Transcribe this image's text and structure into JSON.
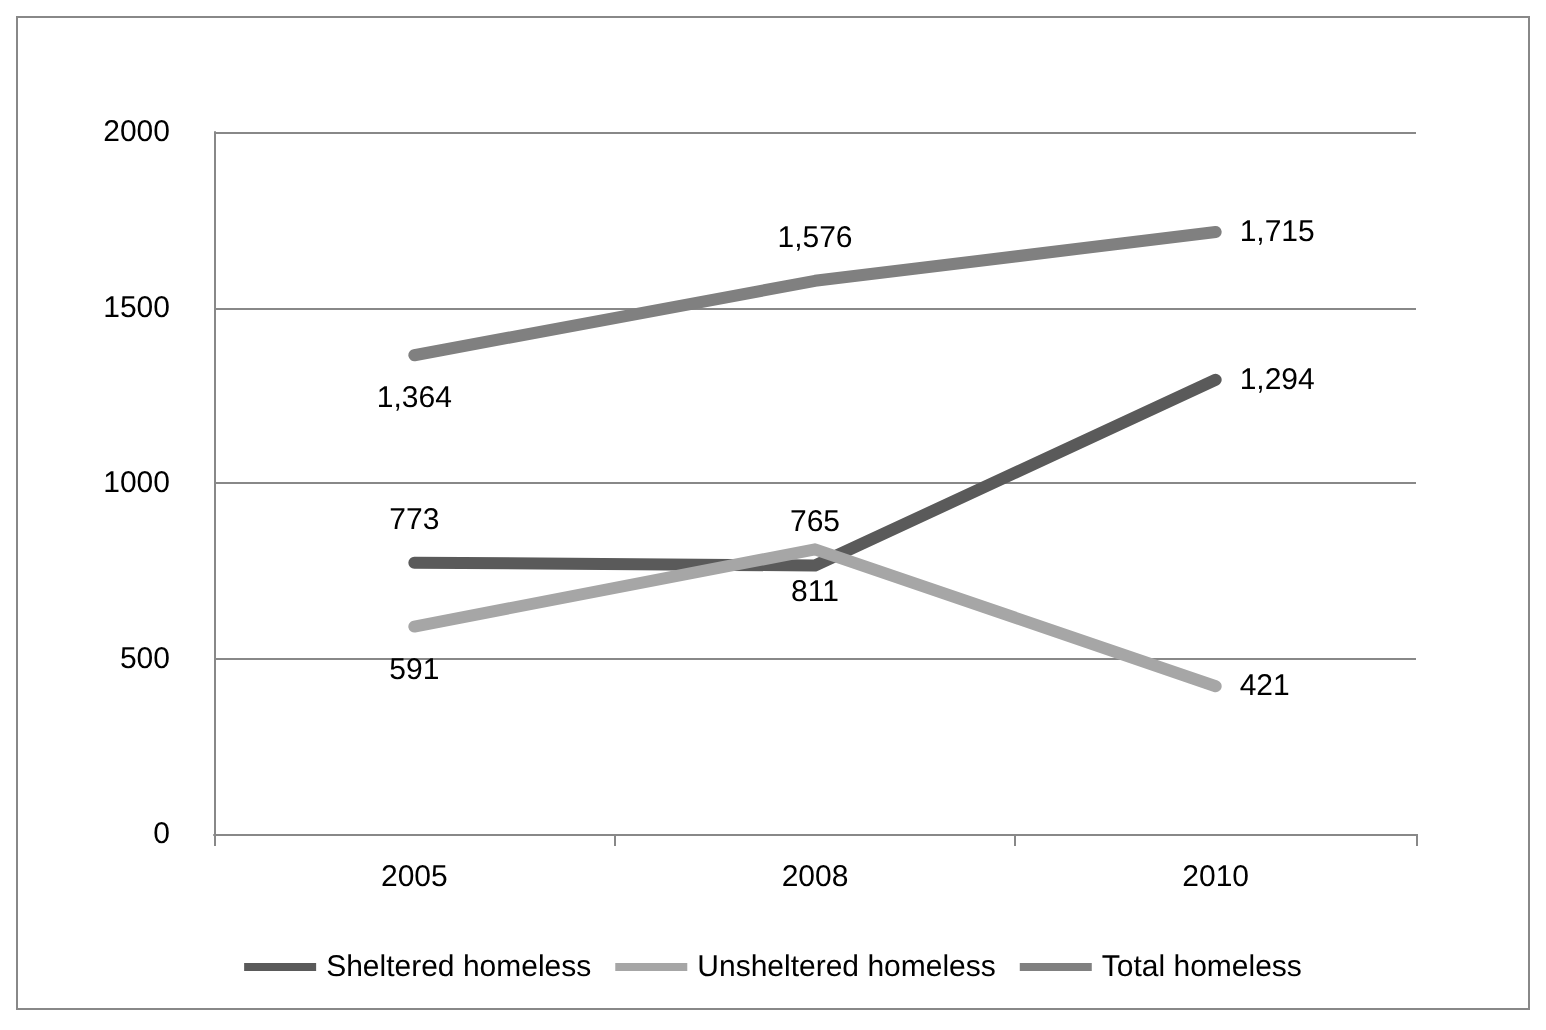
{
  "chart_data": {
    "type": "line",
    "categories": [
      "2005",
      "2008",
      "2010"
    ],
    "series": [
      {
        "name": "Sheltered homeless",
        "color": "#5a5a5a",
        "values": [
          773,
          765,
          1294
        ],
        "value_labels": [
          "773",
          "765",
          "1,294"
        ]
      },
      {
        "name": "Unsheltered homeless",
        "color": "#a6a6a6",
        "values": [
          591,
          811,
          421
        ],
        "value_labels": [
          "591",
          "811",
          "421"
        ]
      },
      {
        "name": "Total homeless",
        "color": "#808080",
        "values": [
          1364,
          1576,
          1715
        ],
        "value_labels": [
          "1,364",
          "1,576",
          "1,715"
        ]
      }
    ],
    "ylim": [
      0,
      2000
    ],
    "yticks": [
      0,
      500,
      1000,
      1500,
      2000
    ],
    "grid": "y",
    "legend": "bottom",
    "marker": "none",
    "line_style": "solid"
  }
}
